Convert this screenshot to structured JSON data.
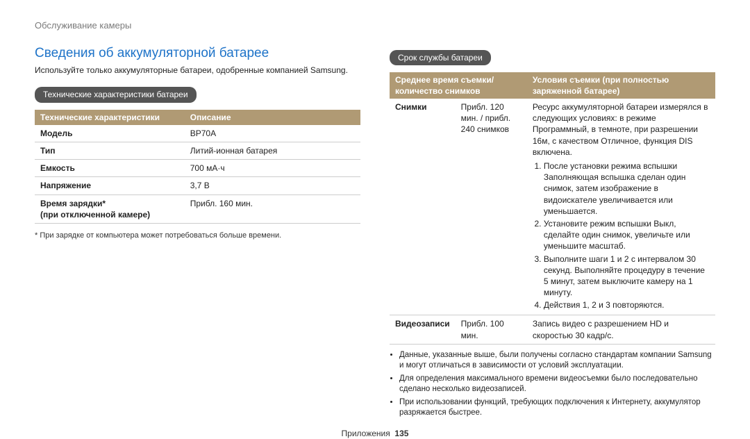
{
  "breadcrumb": "Обслуживание камеры",
  "h1": "Сведения об аккумуляторной батарее",
  "intro": "Используйте только аккумуляторные батареи, одобренные компанией Samsung.",
  "spec_subhead": "Технические характеристики батареи",
  "spec_table": {
    "header": {
      "c1": "Технические характеристики",
      "c2": "Описание"
    },
    "rows": [
      {
        "k": "Модель",
        "v": "BP70A"
      },
      {
        "k": "Тип",
        "v": "Литий-ионная батарея"
      },
      {
        "k": "Емкость",
        "v": "700 мА·ч"
      },
      {
        "k": "Напряжение",
        "v": "3,7 В"
      },
      {
        "k": "Время зарядки*\n(при отключенной камере)",
        "v": "Прибл. 160 мин."
      }
    ]
  },
  "spec_footnote": "* При зарядке от компьютера может потребоваться больше времени.",
  "life_subhead": "Срок службы батареи",
  "life_table": {
    "header": {
      "c1": "Среднее время съемки/ количество снимков",
      "c2": "Условия съемки (при полностью заряженной батарее)"
    },
    "photo": {
      "label": "Снимки",
      "value": "Прибл. 120 мин. / прибл. 240 снимков",
      "cond_intro": "Ресурс аккумуляторной батареи измерялся в следующих условиях: в режиме Программный, в темноте, при разрешении 16м, с качеством Отличное, функция DIS включена.",
      "cond_items": [
        "После установки режима вспышки Заполняющая вспышка сделан один снимок, затем изображение в видоискателе увеличивается или уменьшается.",
        "Установите режим вспышки Выкл, сделайте один снимок, увеличьте или уменьшите масштаб.",
        "Выполните шаги 1 и 2 с интервалом 30 секунд. Выполняйте процедуру в течение 5 минут, затем выключите камеру на 1 минуту.",
        "Действия 1, 2 и 3 повторяются."
      ]
    },
    "video": {
      "label": "Видеозаписи",
      "value": "Прибл. 100 мин.",
      "cond": "Запись видео с разрешением HD и скоростью 30 кадр/с."
    }
  },
  "notes": [
    "Данные, указанные выше, были получены согласно стандартам компании Samsung и могут отличаться в зависимости от условий эксплуатации.",
    "Для определения максимального времени видеосъемки было последовательно сделано несколько видеозаписей.",
    "При использовании функций, требующих подключения к Интернету, аккумулятор разряжается быстрее."
  ],
  "footer": {
    "section": "Приложения",
    "page": "135"
  }
}
